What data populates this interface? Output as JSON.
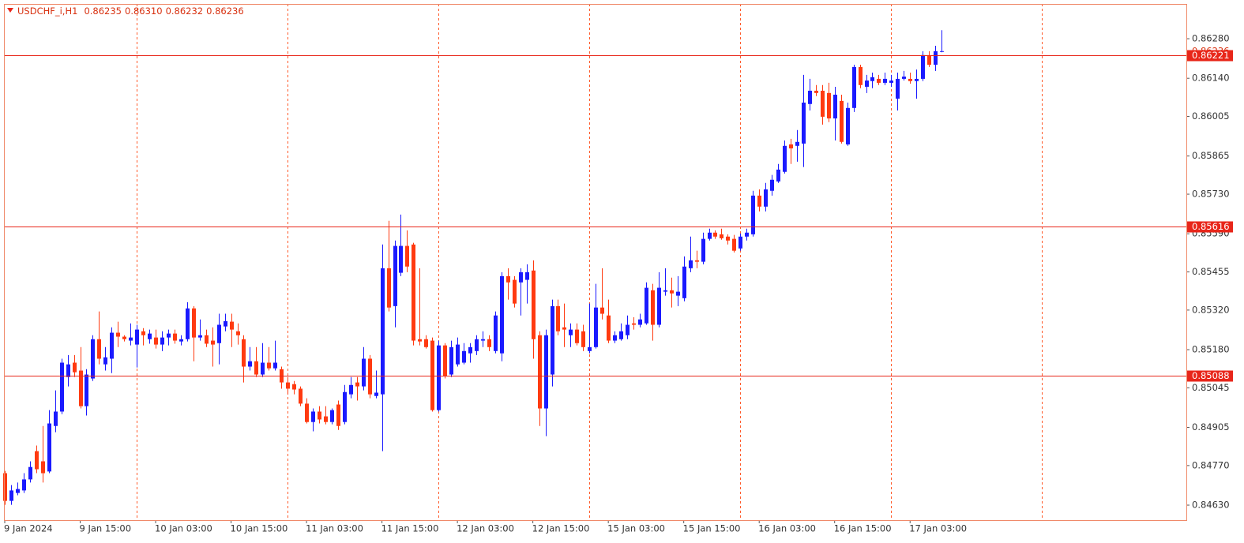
{
  "chart_data": {
    "type": "candlestick",
    "title": "USDCHF_i,H1",
    "info_labels": [
      "0.86235",
      "0.86310",
      "0.86232",
      "0.86236"
    ],
    "categories": [
      "9 Jan 2024",
      null,
      null,
      null,
      null,
      null,
      null,
      null,
      null,
      null,
      null,
      null,
      "9 Jan 15:00",
      null,
      null,
      null,
      null,
      null,
      null,
      null,
      null,
      null,
      null,
      null,
      "10 Jan 03:00",
      null,
      null,
      null,
      null,
      null,
      null,
      null,
      null,
      null,
      null,
      null,
      "10 Jan 15:00",
      null,
      null,
      null,
      null,
      null,
      null,
      null,
      null,
      null,
      null,
      null,
      "11 Jan 03:00",
      null,
      null,
      null,
      null,
      null,
      null,
      null,
      null,
      null,
      null,
      null,
      "11 Jan 15:00",
      null,
      null,
      null,
      null,
      null,
      null,
      null,
      null,
      null,
      null,
      null,
      "12 Jan 03:00",
      null,
      null,
      null,
      null,
      null,
      null,
      null,
      null,
      null,
      null,
      null,
      "12 Jan 15:00",
      null,
      null,
      null,
      null,
      null,
      null,
      null,
      null,
      null,
      null,
      null,
      "15 Jan 03:00",
      null,
      null,
      null,
      null,
      null,
      null,
      null,
      null,
      null,
      null,
      null,
      "15 Jan 15:00",
      null,
      null,
      null,
      null,
      null,
      null,
      null,
      null,
      null,
      null,
      null,
      "16 Jan 03:00",
      null,
      null,
      null,
      null,
      null,
      null,
      null,
      null,
      null,
      null,
      null,
      "16 Jan 15:00",
      null,
      null,
      null,
      null,
      null,
      null,
      null,
      null,
      null,
      null,
      null,
      "17 Jan 03:00",
      null,
      null,
      null,
      null,
      null
    ],
    "open": [
      0.84743,
      0.84645,
      0.84673,
      0.84682,
      0.84721,
      0.84821,
      0.84785,
      0.84749,
      0.8491,
      0.84961,
      0.85083,
      0.85134,
      0.85106,
      0.8498,
      0.85078,
      0.85217,
      0.85128,
      0.85148,
      0.8524,
      0.85226,
      0.85212,
      0.85198,
      0.85245,
      0.85217,
      0.85223,
      0.85198,
      0.85223,
      0.85237,
      0.85209,
      0.85217,
      0.85326,
      0.85223,
      0.85231,
      0.85212,
      0.85203,
      0.85262,
      0.85279,
      0.85245,
      0.85217,
      0.8512,
      0.85139,
      0.85092,
      0.85134,
      0.85114,
      0.85111,
      0.85064,
      0.85058,
      0.85042,
      0.84989,
      0.84924,
      0.84961,
      0.84944,
      0.84924,
      0.84986,
      0.84924,
      0.85022,
      0.85064,
      0.8505,
      0.85148,
      0.85016,
      0.85022,
      0.85468,
      0.85334,
      0.85452,
      0.85547,
      0.85552,
      0.85217,
      0.85217,
      0.85212,
      0.84966,
      0.85195,
      0.85092,
      0.85128,
      0.85134,
      0.85167,
      0.85175,
      0.85212,
      0.85217,
      0.85175,
      0.85167,
      0.8544,
      0.85427,
      0.85418,
      0.85427,
      0.8546,
      0.85231,
      0.84972,
      0.85092,
      0.85334,
      0.85259,
      0.85231,
      0.85251,
      0.85245,
      0.85175,
      0.85189,
      0.85329,
      0.85301,
      0.85212,
      0.85217,
      0.85231,
      0.85273,
      0.85268,
      0.85273,
      0.8539,
      0.85268,
      0.85385,
      0.8539,
      0.85371,
      0.85362,
      0.85468,
      0.85496,
      0.85491,
      0.85572,
      0.85594,
      0.85588,
      0.8558,
      0.85572,
      0.85538,
      0.8558,
      0.85588,
      0.85725,
      0.85686,
      0.85742,
      0.85775,
      0.85809,
      0.85906,
      0.85901,
      0.85909,
      0.86049,
      0.86096,
      0.86096,
      0.86088,
      0.85998,
      0.8606,
      0.85906,
      0.86035,
      0.8618,
      0.8611,
      0.8613,
      0.86138,
      0.86124,
      0.86124,
      0.86068,
      0.86138,
      0.86138,
      0.8613,
      0.86138,
      0.86222,
      0.86188,
      0.86235
    ],
    "high": [
      0.84751,
      0.84701,
      0.8471,
      0.84743,
      0.84785,
      0.84841,
      0.8491,
      0.84966,
      0.85036,
      0.85148,
      0.85161,
      0.85161,
      0.85189,
      0.85111,
      0.85231,
      0.85315,
      0.85189,
      0.85259,
      0.85279,
      0.85231,
      0.85273,
      0.85268,
      0.85256,
      0.85251,
      0.85251,
      0.85245,
      0.85251,
      0.85251,
      0.85231,
      0.85348,
      0.85334,
      0.85287,
      0.85251,
      0.85259,
      0.85307,
      0.85307,
      0.85307,
      0.85273,
      0.85231,
      0.85189,
      0.85189,
      0.85203,
      0.85189,
      0.85212,
      0.8512,
      0.85083,
      0.85069,
      0.8505,
      0.85008,
      0.84972,
      0.8498,
      0.8498,
      0.84972,
      0.85,
      0.85055,
      0.85083,
      0.85083,
      0.85189,
      0.85161,
      0.85106,
      0.85552,
      0.85636,
      0.85566,
      0.85658,
      0.85602,
      0.85558,
      0.85468,
      0.85231,
      0.85223,
      0.85212,
      0.85203,
      0.85212,
      0.85223,
      0.85203,
      0.85203,
      0.85231,
      0.85245,
      0.85231,
      0.85315,
      0.85454,
      0.85468,
      0.8544,
      0.85468,
      0.85482,
      0.85496,
      0.85245,
      0.85251,
      0.85357,
      0.85357,
      0.85343,
      0.85273,
      0.85273,
      0.85268,
      0.85343,
      0.85413,
      0.85468,
      0.85357,
      0.85245,
      0.85273,
      0.85301,
      0.85295,
      0.85307,
      0.85418,
      0.85413,
      0.85454,
      0.85468,
      0.85435,
      0.8544,
      0.8551,
      0.8558,
      0.8553,
      0.85594,
      0.85608,
      0.85602,
      0.85608,
      0.85588,
      0.85586,
      0.85591,
      0.85608,
      0.85742,
      0.85747,
      0.8577,
      0.85798,
      0.85837,
      0.8592,
      0.85926,
      0.85957,
      0.86152,
      0.86138,
      0.86116,
      0.86116,
      0.86124,
      0.8611,
      0.86082,
      0.86054,
      0.86188,
      0.86188,
      0.86152,
      0.8616,
      0.86152,
      0.8616,
      0.86152,
      0.8616,
      0.86166,
      0.8616,
      0.86171,
      0.86236,
      0.86236,
      0.86255,
      0.8631
    ],
    "low": [
      0.84631,
      0.84631,
      0.84665,
      0.84673,
      0.8471,
      0.84743,
      0.8471,
      0.84743,
      0.84888,
      0.84952,
      0.8505,
      0.85083,
      0.84972,
      0.84947,
      0.85069,
      0.85128,
      0.85106,
      0.85097,
      0.85189,
      0.85209,
      0.85195,
      0.85117,
      0.85195,
      0.85201,
      0.85184,
      0.85175,
      0.85195,
      0.85201,
      0.85195,
      0.85209,
      0.85139,
      0.85212,
      0.85189,
      0.8512,
      0.85128,
      0.85245,
      0.85189,
      0.85198,
      0.85064,
      0.85106,
      0.85083,
      0.85083,
      0.85106,
      0.85106,
      0.85042,
      0.85022,
      0.85022,
      0.8498,
      0.84919,
      0.84891,
      0.84919,
      0.84916,
      0.84916,
      0.84896,
      0.84916,
      0.85008,
      0.85,
      0.85036,
      0.85008,
      0.85008,
      0.84821,
      0.85315,
      0.85259,
      0.8544,
      0.85454,
      0.85195,
      0.85195,
      0.85184,
      0.84961,
      0.84961,
      0.85078,
      0.85083,
      0.8512,
      0.85128,
      0.85134,
      0.85161,
      0.85189,
      0.85175,
      0.85167,
      0.85139,
      0.85357,
      0.85329,
      0.85301,
      0.85343,
      0.85148,
      0.8491,
      0.84874,
      0.8505,
      0.85231,
      0.85189,
      0.85189,
      0.85195,
      0.85175,
      0.85167,
      0.85184,
      0.85287,
      0.85203,
      0.85203,
      0.85212,
      0.85217,
      0.85251,
      0.85259,
      0.85268,
      0.85212,
      0.85259,
      0.85371,
      0.85329,
      0.85334,
      0.85351,
      0.85454,
      0.85468,
      0.85482,
      0.85566,
      0.85572,
      0.85569,
      0.85552,
      0.85524,
      0.8553,
      0.85566,
      0.8558,
      0.85669,
      0.85669,
      0.85725,
      0.8577,
      0.85803,
      0.85837,
      0.85845,
      0.85826,
      0.86026,
      0.86077,
      0.85976,
      0.85985,
      0.8592,
      0.85909,
      0.85901,
      0.86021,
      0.86105,
      0.86088,
      0.86105,
      0.86116,
      0.86116,
      0.8611,
      0.86026,
      0.86132,
      0.86121,
      0.86068,
      0.8613,
      0.8618,
      0.86166,
      0.86232
    ],
    "close": [
      0.84645,
      0.84682,
      0.84687,
      0.84721,
      0.84765,
      0.84757,
      0.84743,
      0.84919,
      0.84961,
      0.85134,
      0.85128,
      0.851,
      0.8498,
      0.85092,
      0.85217,
      0.85148,
      0.85153,
      0.8524,
      0.85226,
      0.85217,
      0.85223,
      0.85251,
      0.85231,
      0.85237,
      0.85198,
      0.85223,
      0.85237,
      0.85212,
      0.85217,
      0.85326,
      0.85223,
      0.85231,
      0.85201,
      0.85198,
      0.85268,
      0.85281,
      0.85251,
      0.85231,
      0.8512,
      0.85139,
      0.85092,
      0.85134,
      0.85114,
      0.85134,
      0.85064,
      0.85042,
      0.85039,
      0.84989,
      0.84924,
      0.84961,
      0.84933,
      0.84924,
      0.84966,
      0.8491,
      0.8503,
      0.85055,
      0.8505,
      0.85148,
      0.85022,
      0.85028,
      0.85468,
      0.85329,
      0.85547,
      0.85547,
      0.85474,
      0.85212,
      0.85209,
      0.85189,
      0.84966,
      0.85195,
      0.85086,
      0.85189,
      0.85198,
      0.85175,
      0.85189,
      0.85217,
      0.85217,
      0.85189,
      0.85301,
      0.8544,
      0.85418,
      0.85343,
      0.85454,
      0.85454,
      0.85217,
      0.84972,
      0.85231,
      0.85334,
      0.85245,
      0.85251,
      0.85251,
      0.85203,
      0.85189,
      0.85189,
      0.85329,
      0.85307,
      0.85212,
      0.85231,
      0.85245,
      0.85268,
      0.85268,
      0.85287,
      0.85399,
      0.85268,
      0.85399,
      0.8539,
      0.85379,
      0.85385,
      0.85474,
      0.85496,
      0.85491,
      0.85572,
      0.85594,
      0.8558,
      0.85574,
      0.85566,
      0.8553,
      0.8558,
      0.85594,
      0.85725,
      0.85686,
      0.85747,
      0.85781,
      0.85817,
      0.85901,
      0.85892,
      0.85915,
      0.86054,
      0.86096,
      0.86088,
      0.86004,
      0.85998,
      0.86082,
      0.85915,
      0.86035,
      0.8618,
      0.86116,
      0.86132,
      0.86144,
      0.86124,
      0.86138,
      0.86132,
      0.86138,
      0.86146,
      0.8613,
      0.86138,
      0.86222,
      0.86188,
      0.86236,
      0.86236
    ],
    "up_color": "#1a1aff",
    "down_color": "#ff3a10",
    "price_lines": [
      0.86221,
      0.85616,
      0.85088
    ],
    "price_line_color": "#e8261a",
    "ylim": [
      0.84577,
      0.86403
    ],
    "yticks": [
      {
        "value": 0.8628,
        "label": "0.86280"
      },
      {
        "value": 0.8614,
        "label": "0.86140"
      },
      0.86005,
      0.85865,
      {
        "value": 0.8573,
        "label": "0.85730"
      },
      {
        "value": 0.8559,
        "label": "0.85590"
      },
      0.85455,
      {
        "value": 0.8532,
        "label": "0.85320"
      },
      {
        "value": 0.8518,
        "label": "0.85180"
      },
      0.85045,
      0.84905,
      {
        "value": 0.8477,
        "label": "0.84770"
      },
      {
        "value": 0.8463,
        "label": "0.84630"
      }
    ]
  }
}
